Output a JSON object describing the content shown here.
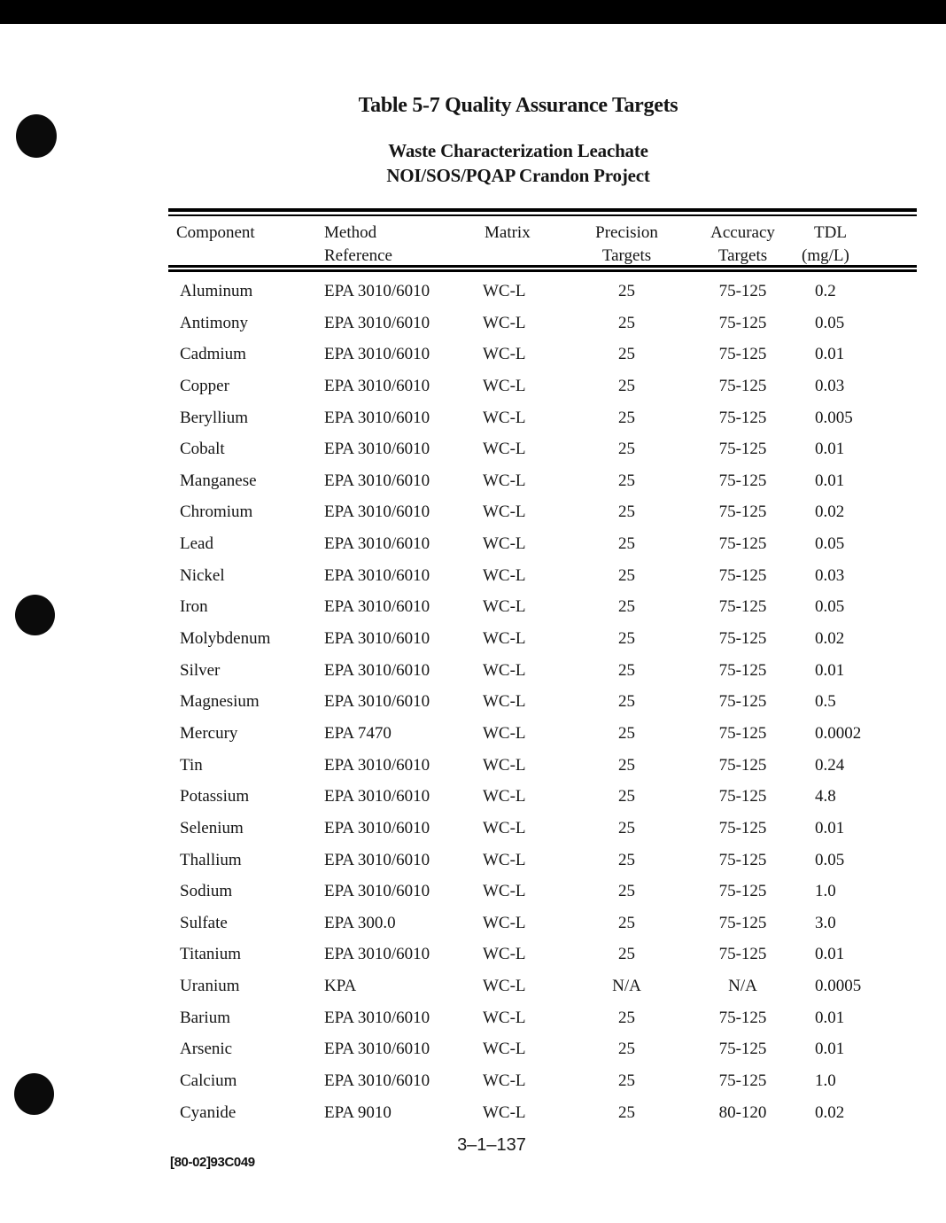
{
  "page": {
    "title": "Table 5-7 Quality Assurance Targets",
    "subtitle_line1": "Waste Characterization Leachate",
    "subtitle_line2": "NOI/SOS/PQAP Crandon Project",
    "page_number": "3–1–137",
    "doc_code": "[80-02]93C049"
  },
  "colors": {
    "paper": "#ffffff",
    "ink": "#151515",
    "artifact_black": "#000000"
  },
  "artifacts": {
    "top_edge_bar": true,
    "hole_punch_dots": 3
  },
  "table": {
    "headers": [
      {
        "line1": "Component",
        "line2": ""
      },
      {
        "line1": "Method",
        "line2": "Reference"
      },
      {
        "line1": "Matrix",
        "line2": ""
      },
      {
        "line1": "Precision",
        "line2": "Targets"
      },
      {
        "line1": "Accuracy",
        "line2": "Targets"
      },
      {
        "line1": "TDL",
        "line2": "(mg/L)"
      }
    ],
    "rows": [
      [
        "Aluminum",
        "EPA 3010/6010",
        "WC-L",
        "25",
        "75-125",
        "0.2"
      ],
      [
        "Antimony",
        "EPA 3010/6010",
        "WC-L",
        "25",
        "75-125",
        "0.05"
      ],
      [
        "Cadmium",
        "EPA 3010/6010",
        "WC-L",
        "25",
        "75-125",
        "0.01"
      ],
      [
        "Copper",
        "EPA 3010/6010",
        "WC-L",
        "25",
        "75-125",
        "0.03"
      ],
      [
        "Beryllium",
        "EPA 3010/6010",
        "WC-L",
        "25",
        "75-125",
        "0.005"
      ],
      [
        "Cobalt",
        "EPA 3010/6010",
        "WC-L",
        "25",
        "75-125",
        "0.01"
      ],
      [
        "Manganese",
        "EPA 3010/6010",
        "WC-L",
        "25",
        "75-125",
        "0.01"
      ],
      [
        "Chromium",
        "EPA 3010/6010",
        "WC-L",
        "25",
        "75-125",
        "0.02"
      ],
      [
        "Lead",
        "EPA 3010/6010",
        "WC-L",
        "25",
        "75-125",
        "0.05"
      ],
      [
        "Nickel",
        "EPA 3010/6010",
        "WC-L",
        "25",
        "75-125",
        "0.03"
      ],
      [
        "Iron",
        "EPA 3010/6010",
        "WC-L",
        "25",
        "75-125",
        "0.05"
      ],
      [
        "Molybdenum",
        "EPA 3010/6010",
        "WC-L",
        "25",
        "75-125",
        "0.02"
      ],
      [
        "Silver",
        "EPA 3010/6010",
        "WC-L",
        "25",
        "75-125",
        "0.01"
      ],
      [
        "Magnesium",
        "EPA 3010/6010",
        "WC-L",
        "25",
        "75-125",
        "0.5"
      ],
      [
        "Mercury",
        "EPA 7470",
        "WC-L",
        "25",
        "75-125",
        "0.0002"
      ],
      [
        "Tin",
        "EPA 3010/6010",
        "WC-L",
        "25",
        "75-125",
        "0.24"
      ],
      [
        "Potassium",
        "EPA 3010/6010",
        "WC-L",
        "25",
        "75-125",
        "4.8"
      ],
      [
        "Selenium",
        "EPA 3010/6010",
        "WC-L",
        "25",
        "75-125",
        "0.01"
      ],
      [
        "Thallium",
        "EPA 3010/6010",
        "WC-L",
        "25",
        "75-125",
        "0.05"
      ],
      [
        "Sodium",
        "EPA 3010/6010",
        "WC-L",
        "25",
        "75-125",
        "1.0"
      ],
      [
        "Sulfate",
        "EPA 300.0",
        "WC-L",
        "25",
        "75-125",
        "3.0"
      ],
      [
        "Titanium",
        "EPA 3010/6010",
        "WC-L",
        "25",
        "75-125",
        "0.01"
      ],
      [
        "Uranium",
        "KPA",
        "WC-L",
        "N/A",
        "N/A",
        "0.0005"
      ],
      [
        "Barium",
        "EPA 3010/6010",
        "WC-L",
        "25",
        "75-125",
        "0.01"
      ],
      [
        "Arsenic",
        "EPA 3010/6010",
        "WC-L",
        "25",
        "75-125",
        "0.01"
      ],
      [
        "Calcium",
        "EPA 3010/6010",
        "WC-L",
        "25",
        "75-125",
        "1.0"
      ],
      [
        "Cyanide",
        "EPA 9010",
        "WC-L",
        "25",
        "80-120",
        "0.02"
      ]
    ]
  }
}
